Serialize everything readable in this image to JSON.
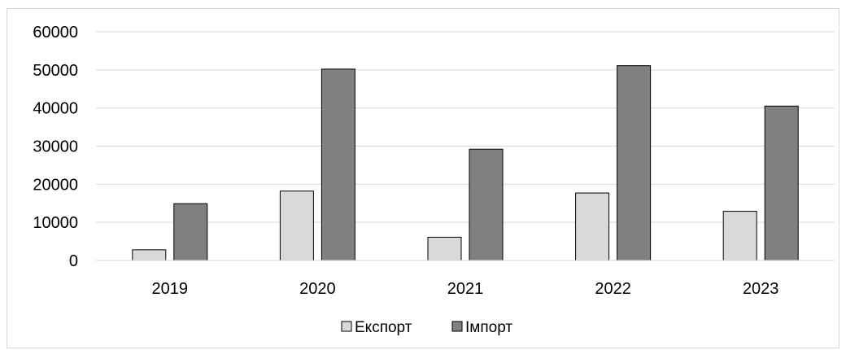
{
  "chart_data": {
    "type": "bar",
    "categories": [
      "2019",
      "2020",
      "2021",
      "2022",
      "2023"
    ],
    "series": [
      {
        "name": "Експорт",
        "values": [
          2800,
          18200,
          6100,
          17700,
          12900
        ],
        "color": "#d9d9d9"
      },
      {
        "name": "Імпорт",
        "values": [
          14900,
          50200,
          29200,
          51100,
          40500
        ],
        "color": "#808080"
      }
    ],
    "y_ticks": [
      "0",
      "10000",
      "20000",
      "30000",
      "40000",
      "50000",
      "60000"
    ],
    "ylim": [
      0,
      60000
    ],
    "grid": true,
    "legend_position": "bottom",
    "title": "",
    "xlabel": "",
    "ylabel": ""
  }
}
